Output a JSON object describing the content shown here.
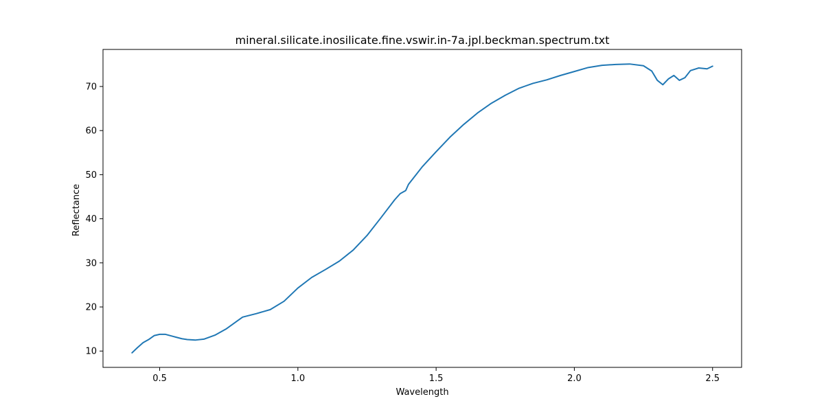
{
  "chart_data": {
    "type": "line",
    "title": "mineral.silicate.inosilicate.fine.vswir.in-7a.jpl.beckman.spectrum.txt",
    "xlabel": "Wavelength",
    "ylabel": "Reflectance",
    "xlim": [
      0.295,
      2.605
    ],
    "ylim": [
      6.3,
      78.4
    ],
    "xticks": [
      0.5,
      1.0,
      1.5,
      2.0,
      2.5
    ],
    "xtick_labels": [
      "0.5",
      "1.0",
      "1.5",
      "2.0",
      "2.5"
    ],
    "yticks": [
      10,
      20,
      30,
      40,
      50,
      60,
      70
    ],
    "ytick_labels": [
      "10",
      "20",
      "30",
      "40",
      "50",
      "60",
      "70"
    ],
    "grid": false,
    "series": [
      {
        "color": "#1f77b4",
        "x": [
          0.4,
          0.42,
          0.44,
          0.46,
          0.48,
          0.5,
          0.52,
          0.55,
          0.58,
          0.6,
          0.63,
          0.66,
          0.7,
          0.74,
          0.78,
          0.8,
          0.85,
          0.9,
          0.95,
          1.0,
          1.05,
          1.1,
          1.15,
          1.2,
          1.25,
          1.3,
          1.35,
          1.37,
          1.39,
          1.4,
          1.45,
          1.5,
          1.55,
          1.6,
          1.65,
          1.7,
          1.75,
          1.8,
          1.85,
          1.9,
          1.95,
          2.0,
          2.05,
          2.1,
          2.15,
          2.2,
          2.25,
          2.28,
          2.3,
          2.32,
          2.34,
          2.36,
          2.38,
          2.4,
          2.42,
          2.45,
          2.48,
          2.5
        ],
        "values": [
          9.6,
          10.8,
          11.9,
          12.6,
          13.5,
          13.8,
          13.8,
          13.3,
          12.8,
          12.6,
          12.5,
          12.7,
          13.6,
          15.0,
          16.8,
          17.7,
          18.5,
          19.4,
          21.3,
          24.3,
          26.7,
          28.5,
          30.4,
          32.9,
          36.2,
          40.2,
          44.3,
          45.7,
          46.4,
          47.8,
          51.8,
          55.2,
          58.5,
          61.4,
          64.0,
          66.2,
          68.0,
          69.6,
          70.7,
          71.5,
          72.5,
          73.4,
          74.3,
          74.8,
          75.0,
          75.1,
          74.7,
          73.5,
          71.4,
          70.4,
          71.7,
          72.5,
          71.4,
          72.0,
          73.6,
          74.2,
          74.0,
          74.6
        ]
      }
    ]
  }
}
